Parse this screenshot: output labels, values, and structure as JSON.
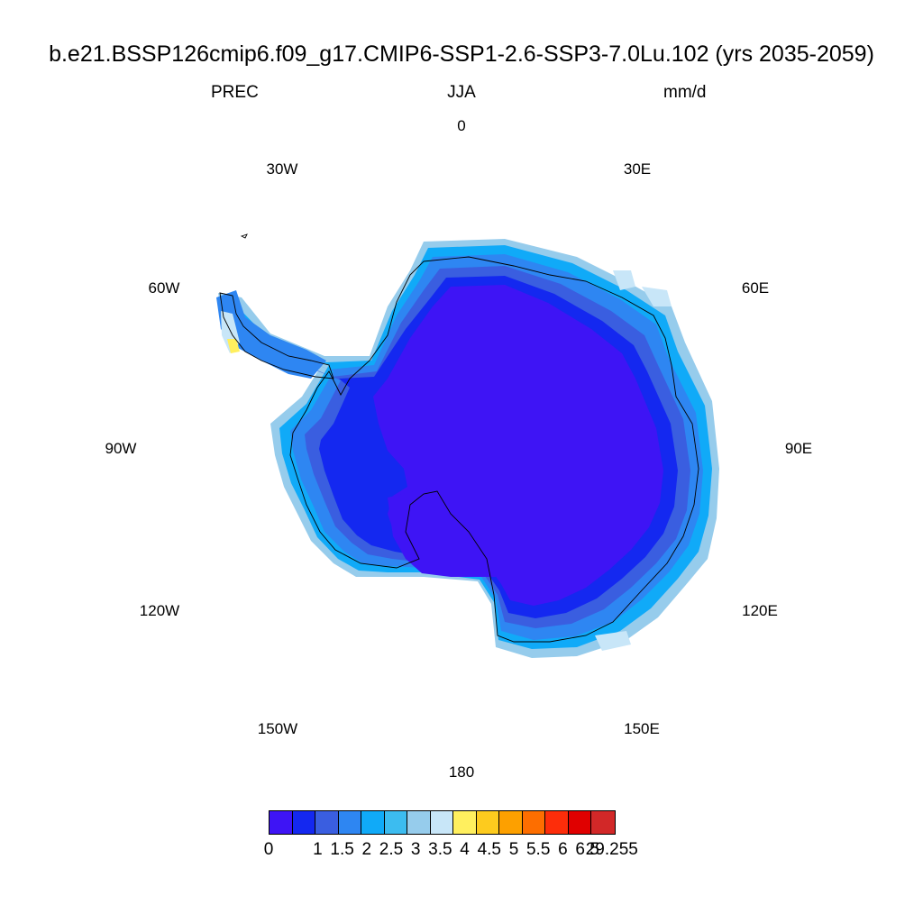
{
  "header": {
    "title": "b.e21.BSSP126cmip6.f09_g17.CMIP6-SSP1-2.6-SSP3-7.0Lu.102 (yrs 2035-2059)",
    "variable": "PREC",
    "season": "JJA",
    "units": "mm/d"
  },
  "map": {
    "projection": "south-polar-stereographic",
    "region": "Antarctica",
    "longitude_labels": [
      "0",
      "30E",
      "60E",
      "90E",
      "120E",
      "150E",
      "180",
      "150W",
      "120W",
      "90W",
      "60W",
      "30W"
    ]
  },
  "colorbar": {
    "colors": [
      "#3e14f5",
      "#1428f0",
      "#3a5ee0",
      "#2e86f2",
      "#10aaf8",
      "#3cbcf0",
      "#96ccec",
      "#c8e6f8",
      "#ffef5e",
      "#fdcb1e",
      "#fda000",
      "#fd6e00",
      "#fd2d0a",
      "#e00000",
      "#d22828"
    ],
    "labels": [
      "0",
      "1",
      "1.5",
      "2",
      "2.5",
      "3",
      "3.5",
      "4",
      "4.5",
      "5",
      "5.5",
      "6",
      "6.5",
      "29.255"
    ]
  }
}
